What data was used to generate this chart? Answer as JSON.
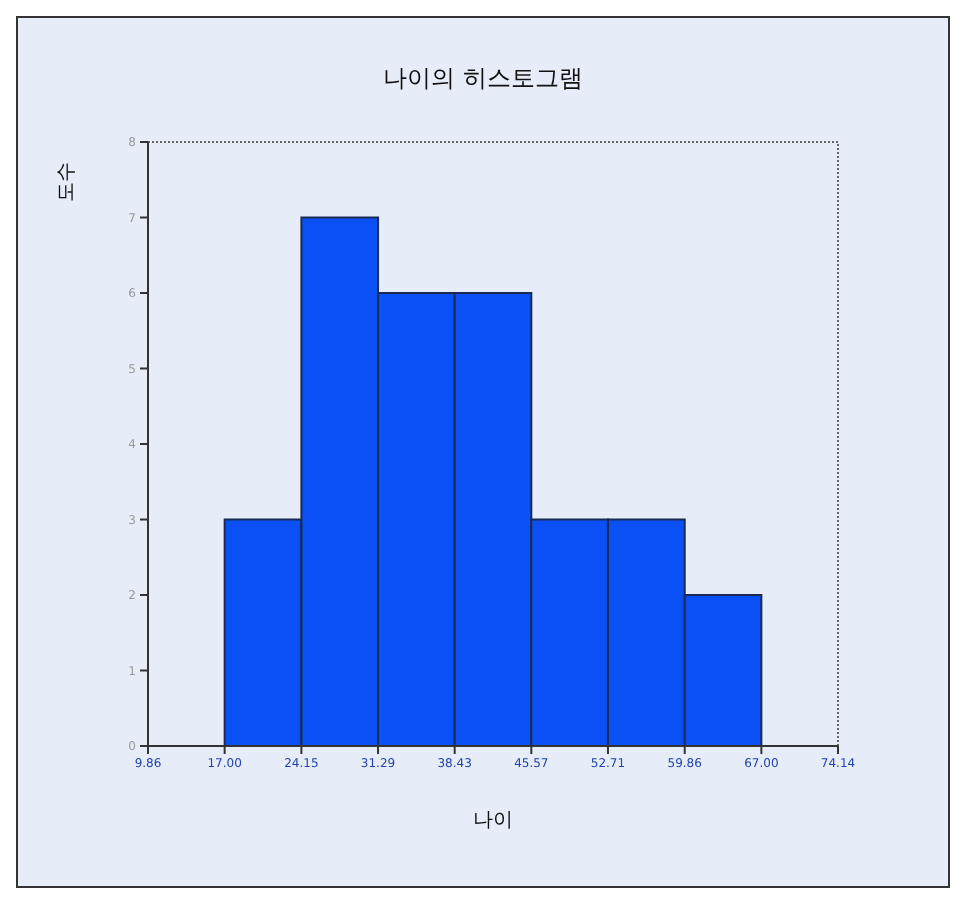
{
  "chart_data": {
    "type": "histogram",
    "title": "나이의 히스토그램",
    "xlabel": "나이",
    "ylabel": "도수",
    "bins": [
      17.0,
      24.15,
      31.29,
      38.43,
      45.57,
      52.71,
      59.86,
      67.0
    ],
    "values": [
      3,
      7,
      6,
      6,
      3,
      3,
      2
    ],
    "color": "#0a50f5",
    "xlim": [
      9.86,
      74.14
    ],
    "xticks": [
      {
        "value": 9.86,
        "label": "9.86"
      },
      {
        "value": 17.0,
        "label": "17.00"
      },
      {
        "value": 24.15,
        "label": "24.15"
      },
      {
        "value": 31.29,
        "label": "31.29"
      },
      {
        "value": 38.43,
        "label": "38.43"
      },
      {
        "value": 45.57,
        "label": "45.57"
      },
      {
        "value": 52.71,
        "label": "52.71"
      },
      {
        "value": 59.86,
        "label": "59.86"
      },
      {
        "value": 67.0,
        "label": "67.00"
      },
      {
        "value": 74.14,
        "label": "74.14"
      }
    ],
    "ylim": [
      0,
      8
    ],
    "yticks": [
      0,
      1,
      2,
      3,
      4,
      5,
      6,
      7,
      8
    ]
  }
}
